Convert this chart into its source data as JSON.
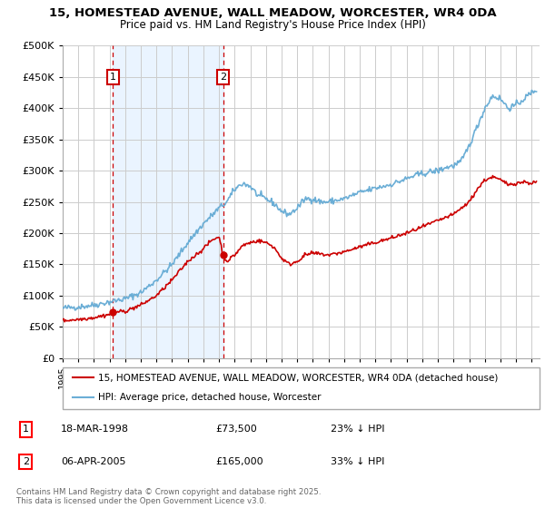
{
  "title_line1": "15, HOMESTEAD AVENUE, WALL MEADOW, WORCESTER, WR4 0DA",
  "title_line2": "Price paid vs. HM Land Registry's House Price Index (HPI)",
  "ylabel_ticks": [
    "£0",
    "£50K",
    "£100K",
    "£150K",
    "£200K",
    "£250K",
    "£300K",
    "£350K",
    "£400K",
    "£450K",
    "£500K"
  ],
  "ytick_values": [
    0,
    50000,
    100000,
    150000,
    200000,
    250000,
    300000,
    350000,
    400000,
    450000,
    500000
  ],
  "ylim": [
    0,
    500000
  ],
  "xlim_start": 1995.0,
  "xlim_end": 2025.5,
  "xticks": [
    1995,
    1996,
    1997,
    1998,
    1999,
    2000,
    2001,
    2002,
    2003,
    2004,
    2005,
    2006,
    2007,
    2008,
    2009,
    2010,
    2011,
    2012,
    2013,
    2014,
    2015,
    2016,
    2017,
    2018,
    2019,
    2020,
    2021,
    2022,
    2023,
    2024,
    2025
  ],
  "hpi_color": "#6baed6",
  "property_color": "#cc0000",
  "vline_color": "#cc0000",
  "sale1_x": 1998.21,
  "sale1_y": 73500,
  "sale1_label": "1",
  "sale1_date": "18-MAR-1998",
  "sale1_price": "£73,500",
  "sale1_hpi": "23% ↓ HPI",
  "sale2_x": 2005.26,
  "sale2_y": 165000,
  "sale2_label": "2",
  "sale2_date": "06-APR-2005",
  "sale2_price": "£165,000",
  "sale2_hpi": "33% ↓ HPI",
  "legend_line1": "15, HOMESTEAD AVENUE, WALL MEADOW, WORCESTER, WR4 0DA (detached house)",
  "legend_line2": "HPI: Average price, detached house, Worcester",
  "footnote": "Contains HM Land Registry data © Crown copyright and database right 2025.\nThis data is licensed under the Open Government Licence v3.0.",
  "bg_color": "#ffffff",
  "plot_bg_color": "#ffffff",
  "grid_color": "#cccccc",
  "highlight_bg": "#ddeeff",
  "hpi_anchors": [
    [
      1995.0,
      80000
    ],
    [
      1996.0,
      82000
    ],
    [
      1997.0,
      85000
    ],
    [
      1998.0,
      90000
    ],
    [
      1999.0,
      95000
    ],
    [
      2000.0,
      105000
    ],
    [
      2001.0,
      125000
    ],
    [
      2002.0,
      150000
    ],
    [
      2003.0,
      185000
    ],
    [
      2004.0,
      215000
    ],
    [
      2005.0,
      240000
    ],
    [
      2005.5,
      250000
    ],
    [
      2006.0,
      270000
    ],
    [
      2006.5,
      280000
    ],
    [
      2007.0,
      275000
    ],
    [
      2007.5,
      260000
    ],
    [
      2008.0,
      255000
    ],
    [
      2008.5,
      248000
    ],
    [
      2009.0,
      235000
    ],
    [
      2009.5,
      230000
    ],
    [
      2010.0,
      240000
    ],
    [
      2010.5,
      255000
    ],
    [
      2011.0,
      255000
    ],
    [
      2011.5,
      250000
    ],
    [
      2012.0,
      250000
    ],
    [
      2013.0,
      255000
    ],
    [
      2014.0,
      265000
    ],
    [
      2015.0,
      272000
    ],
    [
      2016.0,
      278000
    ],
    [
      2017.0,
      287000
    ],
    [
      2017.5,
      292000
    ],
    [
      2018.0,
      295000
    ],
    [
      2018.5,
      298000
    ],
    [
      2019.0,
      300000
    ],
    [
      2019.5,
      305000
    ],
    [
      2020.0,
      308000
    ],
    [
      2020.5,
      315000
    ],
    [
      2021.0,
      340000
    ],
    [
      2021.5,
      370000
    ],
    [
      2022.0,
      400000
    ],
    [
      2022.5,
      420000
    ],
    [
      2023.0,
      415000
    ],
    [
      2023.5,
      400000
    ],
    [
      2024.0,
      405000
    ],
    [
      2024.5,
      415000
    ],
    [
      2025.0,
      425000
    ],
    [
      2025.3,
      430000
    ]
  ],
  "prop_anchors": [
    [
      1995.0,
      60000
    ],
    [
      1996.0,
      62000
    ],
    [
      1997.0,
      65000
    ],
    [
      1998.0,
      70000
    ],
    [
      1998.21,
      73500
    ],
    [
      1999.0,
      75000
    ],
    [
      2000.0,
      85000
    ],
    [
      2001.0,
      100000
    ],
    [
      2002.0,
      125000
    ],
    [
      2003.0,
      155000
    ],
    [
      2004.0,
      175000
    ],
    [
      2004.5,
      188000
    ],
    [
      2005.0,
      195000
    ],
    [
      2005.26,
      165000
    ],
    [
      2005.5,
      155000
    ],
    [
      2006.0,
      165000
    ],
    [
      2006.5,
      180000
    ],
    [
      2007.0,
      185000
    ],
    [
      2007.5,
      188000
    ],
    [
      2008.0,
      185000
    ],
    [
      2008.5,
      178000
    ],
    [
      2009.0,
      160000
    ],
    [
      2009.5,
      150000
    ],
    [
      2010.0,
      155000
    ],
    [
      2010.5,
      165000
    ],
    [
      2011.0,
      168000
    ],
    [
      2012.0,
      165000
    ],
    [
      2013.0,
      170000
    ],
    [
      2014.0,
      178000
    ],
    [
      2015.0,
      185000
    ],
    [
      2016.0,
      192000
    ],
    [
      2017.0,
      200000
    ],
    [
      2018.0,
      210000
    ],
    [
      2019.0,
      220000
    ],
    [
      2020.0,
      230000
    ],
    [
      2021.0,
      250000
    ],
    [
      2021.5,
      270000
    ],
    [
      2022.0,
      285000
    ],
    [
      2022.5,
      290000
    ],
    [
      2023.0,
      285000
    ],
    [
      2023.5,
      278000
    ],
    [
      2024.0,
      280000
    ],
    [
      2024.5,
      282000
    ],
    [
      2025.0,
      280000
    ],
    [
      2025.3,
      282000
    ]
  ]
}
